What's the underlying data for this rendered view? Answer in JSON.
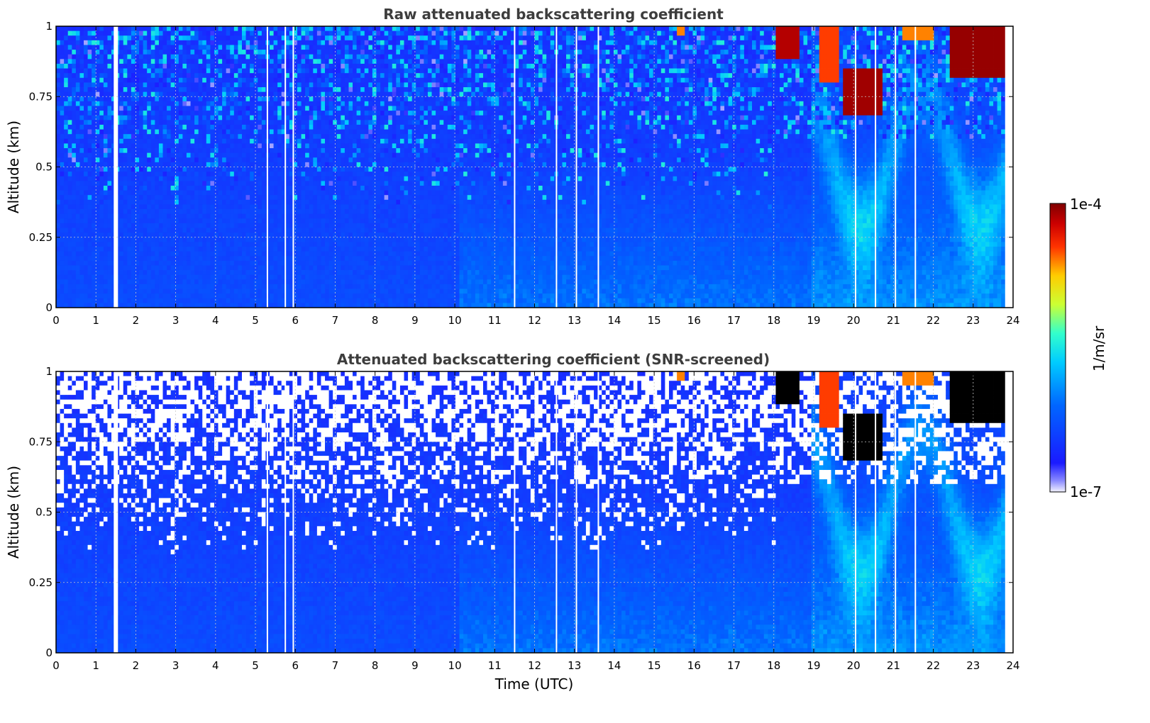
{
  "chart_data": [
    {
      "type": "heatmap",
      "title": "Raw attenuated backscattering coefficient",
      "xlabel": "",
      "ylabel": "Altitude (km)",
      "xlim": [
        0,
        24
      ],
      "ylim": [
        0,
        1
      ],
      "x_ticks": [
        "0",
        "1",
        "2",
        "3",
        "4",
        "5",
        "6",
        "7",
        "8",
        "9",
        "10",
        "11",
        "12",
        "13",
        "14",
        "15",
        "16",
        "17",
        "18",
        "19",
        "20",
        "21",
        "22",
        "23",
        "24"
      ],
      "y_ticks": [
        "0",
        "0.25",
        "0.5",
        "0.75",
        "1"
      ],
      "grid": true,
      "data_gaps_utc": [
        1.5,
        5.3,
        5.75,
        5.95,
        11.5,
        12.55,
        13.05,
        13.6,
        20.05,
        20.55,
        21.05,
        21.55
      ],
      "data_end_utc": 23.8,
      "features": [
        {
          "kind": "noise-dominated upper layer",
          "time_range": [
            0,
            18
          ],
          "altitude_range": [
            0.45,
            1.0
          ]
        },
        {
          "kind": "boundary layer (enhanced backscatter)",
          "time_range": [
            10.1,
            23.8
          ],
          "altitude_range": [
            0.0,
            0.45
          ]
        },
        {
          "kind": "cloud / strong signal",
          "time_range": [
            18.0,
            23.8
          ],
          "altitude_range": [
            0.55,
            1.0
          ],
          "max_value": "1e-4"
        }
      ]
    },
    {
      "type": "heatmap",
      "title": "Attenuated backscattering coefficient (SNR-screened)",
      "xlabel": "Time (UTC)",
      "ylabel": "Altitude (km)",
      "xlim": [
        0,
        24
      ],
      "ylim": [
        0,
        1
      ],
      "x_ticks": [
        "0",
        "1",
        "2",
        "3",
        "4",
        "5",
        "6",
        "7",
        "8",
        "9",
        "10",
        "11",
        "12",
        "13",
        "14",
        "15",
        "16",
        "17",
        "18",
        "19",
        "20",
        "21",
        "22",
        "23",
        "24"
      ],
      "y_ticks": [
        "0",
        "0.25",
        "0.5",
        "0.75",
        "1"
      ],
      "grid": true,
      "data_gaps_utc": [
        1.5,
        5.3,
        5.75,
        5.95,
        11.5,
        12.55,
        13.05,
        13.6,
        20.05,
        20.55,
        21.05,
        21.55
      ],
      "data_end_utc": 23.8,
      "features": [
        {
          "kind": "screened-out low-SNR pixels",
          "time_range": [
            0,
            18
          ],
          "altitude_range": [
            0.5,
            1.0
          ]
        },
        {
          "kind": "boundary layer (enhanced backscatter)",
          "time_range": [
            10.1,
            23.8
          ],
          "altitude_range": [
            0.0,
            0.45
          ]
        },
        {
          "kind": "saturated / attenuated cloud (black)",
          "time_range": [
            18.0,
            23.8
          ],
          "altitude_range": [
            0.65,
            1.0
          ]
        }
      ]
    }
  ],
  "colorbar": {
    "label": "1/m/sr",
    "min_label": "1e-7",
    "max_label": "1e-4",
    "scale": "log",
    "colormap": "jet"
  },
  "colors": {
    "title_text": "#3d3d3d",
    "background_blue": "#0a2bf0",
    "mid_blue": "#1a6fff",
    "cyan": "#27c8ff",
    "cloud_red": "#8b0000",
    "saturated": "#000000"
  }
}
